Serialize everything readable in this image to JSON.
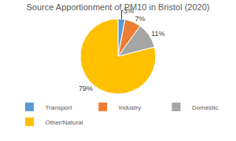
{
  "chart_data": {
    "type": "pie",
    "title": "Source Apportionment of PM10 in Bristol (2020)",
    "categories": [
      "Transport",
      "Industry",
      "Domestic",
      "Other/Natural"
    ],
    "values": [
      3,
      7,
      11,
      79
    ],
    "value_labels": [
      "3%",
      "7%",
      "11%",
      "79%"
    ],
    "colors": [
      "#5b9bd5",
      "#ed7d31",
      "#a5a5a5",
      "#ffc000"
    ],
    "data_labels": true,
    "legend": "bottom"
  }
}
